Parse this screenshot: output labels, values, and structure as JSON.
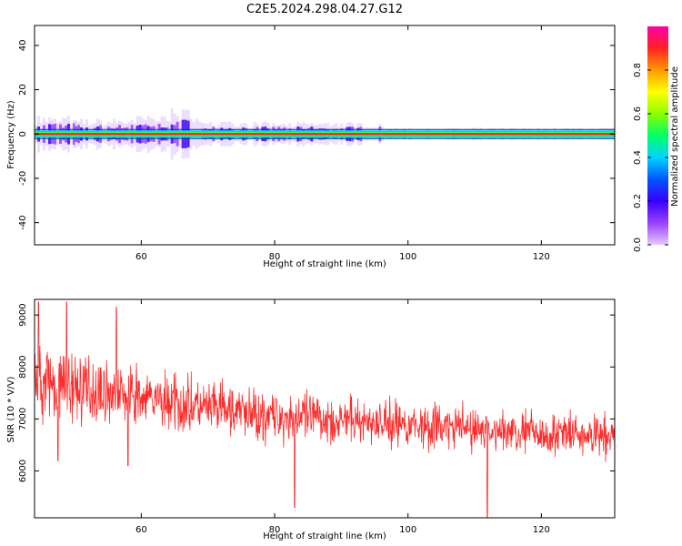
{
  "title": "C2E5.2024.298.04.27.G12",
  "chart_data": [
    {
      "type": "heatmap",
      "xlabel": "Height of straight line (km)",
      "ylabel": "Frequency (Hz)",
      "xlim": [
        44,
        131
      ],
      "ylim": [
        -50,
        49
      ],
      "xticks": [
        60,
        80,
        100,
        120
      ],
      "yticks": [
        -40,
        -20,
        0,
        20,
        40
      ],
      "center_frequency": 0,
      "band_bins": [
        {
          "from": 44,
          "to": 50,
          "halfwidth": 3,
          "peak": "green-red"
        },
        {
          "from": 50,
          "to": 58,
          "halfwidth": 2.5,
          "peak": "green-red"
        },
        {
          "from": 58,
          "to": 64,
          "halfwidth": 3,
          "peak": "green-red"
        },
        {
          "from": 64,
          "to": 69,
          "halfwidth": 4,
          "peak": "green-red"
        },
        {
          "from": 69,
          "to": 96,
          "halfwidth": 2,
          "peak": "red"
        },
        {
          "from": 96,
          "to": 131,
          "halfwidth": 1,
          "peak": "red"
        }
      ],
      "grid": false
    },
    {
      "type": "line",
      "xlabel": "Height of straight line (km)",
      "ylabel": "SNR (10 * V/V)",
      "xlim": [
        44,
        131
      ],
      "ylim": [
        5100,
        9300
      ],
      "xticks": [
        60,
        80,
        100,
        120
      ],
      "yticks": [
        6000,
        7000,
        8000,
        9000
      ],
      "trend": [
        {
          "x": 44,
          "y": 7700
        },
        {
          "x": 50,
          "y": 7600
        },
        {
          "x": 60,
          "y": 7400
        },
        {
          "x": 70,
          "y": 7200
        },
        {
          "x": 80,
          "y": 7050
        },
        {
          "x": 90,
          "y": 6980
        },
        {
          "x": 100,
          "y": 6900
        },
        {
          "x": 110,
          "y": 6800
        },
        {
          "x": 120,
          "y": 6720
        },
        {
          "x": 131,
          "y": 6650
        }
      ],
      "noise_amplitude": [
        {
          "x": 44,
          "y": 700
        },
        {
          "x": 60,
          "y": 600
        },
        {
          "x": 90,
          "y": 500
        },
        {
          "x": 112,
          "y": 450
        },
        {
          "x": 131,
          "y": 420
        }
      ],
      "spikes": [
        {
          "x": 44.6,
          "y": 9250
        },
        {
          "x": 48.8,
          "y": 9250
        },
        {
          "x": 56.3,
          "y": 9150
        },
        {
          "x": 83.0,
          "y": 5300
        },
        {
          "x": 111.9,
          "y": 5100
        },
        {
          "x": 58.0,
          "y": 6100
        },
        {
          "x": 47.5,
          "y": 6200
        }
      ],
      "color": "#ff2a2a",
      "grid": false
    }
  ],
  "colorbar": {
    "label": "Normalized spectral amplitude",
    "ticks": [
      "0.0",
      "0.2",
      "0.4",
      "0.6",
      "0.8"
    ],
    "colors": [
      "#e8c8ff",
      "#9a40ff",
      "#3a00ff",
      "#0055ff",
      "#00d4ff",
      "#00ff66",
      "#8cff00",
      "#ffff00",
      "#ff9900",
      "#ff2222",
      "#ff00aa"
    ]
  }
}
